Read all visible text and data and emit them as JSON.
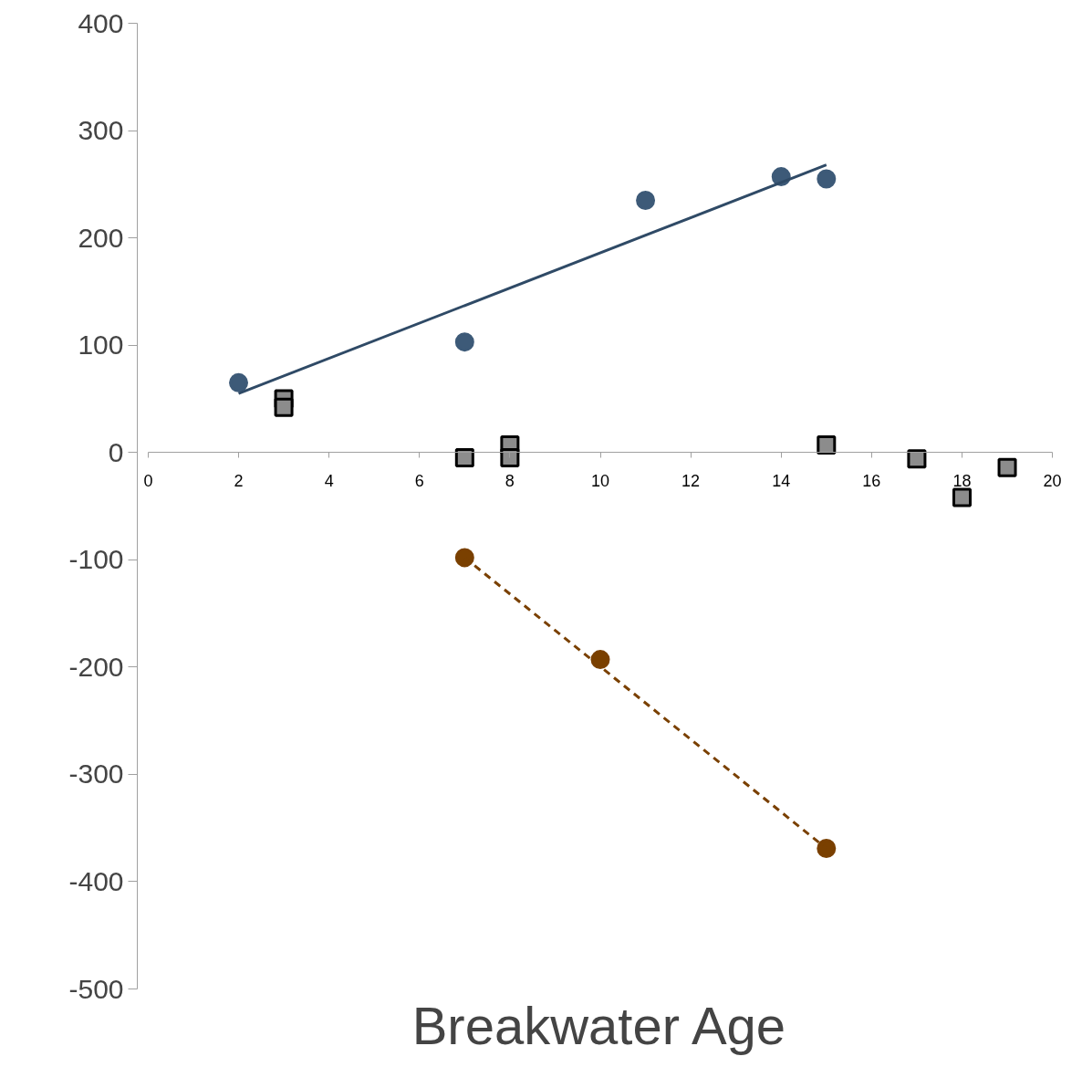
{
  "chart_data": {
    "type": "scatter",
    "xlabel": "Breakwater Age",
    "xlim": [
      0,
      20
    ],
    "xticks": [
      0,
      2,
      4,
      6,
      8,
      10,
      12,
      14,
      16,
      18,
      20
    ],
    "ylim": [
      -500,
      400
    ],
    "yticks": [
      -500,
      -400,
      -300,
      -200,
      -100,
      0,
      100,
      200,
      300,
      400
    ],
    "grid": false,
    "series": [
      {
        "type": "scatter",
        "marker": "circle",
        "color": "#3d5a78",
        "x": [
          2,
          7,
          11,
          14,
          15
        ],
        "values": [
          65,
          103,
          235,
          257,
          255
        ]
      },
      {
        "type": "scatter",
        "marker": "square",
        "color": "#8c8c8c",
        "x": [
          3,
          3,
          7,
          8,
          8,
          15,
          17,
          18,
          19
        ],
        "values": [
          50,
          42,
          -5,
          7,
          -5,
          7,
          -6,
          -42,
          -14
        ]
      },
      {
        "type": "scatter",
        "marker": "circle",
        "color": "#7a4000",
        "x": [
          7,
          10,
          15
        ],
        "values": [
          -98,
          -193,
          -369
        ]
      },
      {
        "type": "line",
        "line_style": "solid",
        "color": "#2f4a66",
        "x": [
          2,
          15
        ],
        "values": [
          55,
          268
        ]
      },
      {
        "type": "line",
        "line_style": "dashed",
        "color": "#7a4000",
        "x": [
          7,
          15
        ],
        "values": [
          -98,
          -369
        ]
      }
    ]
  }
}
